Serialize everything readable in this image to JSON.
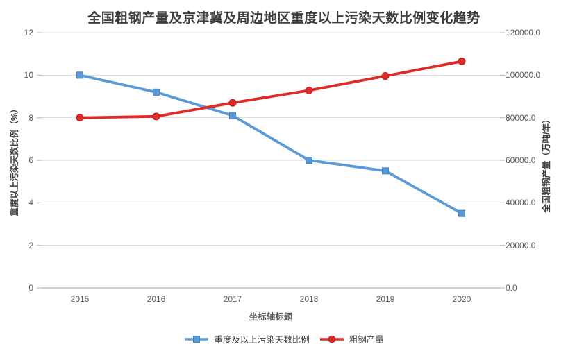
{
  "chart_data": {
    "type": "line",
    "title": "全国粗钢产量及京津冀及周边地区重度以上污染天数比例变化趋势",
    "xlabel": "坐标轴标题",
    "left_axis": {
      "label": "重度以上污染天数比例（%）",
      "min": 0,
      "max": 12,
      "step": 2,
      "ticks": [
        "0",
        "2",
        "4",
        "6",
        "8",
        "10",
        "12"
      ]
    },
    "right_axis": {
      "label": "全国粗钢产量（万吨/年）",
      "min": 0,
      "max": 120000,
      "step": 20000,
      "ticks": [
        "0.0",
        "20000.0",
        "40000.0",
        "60000.0",
        "80000.0",
        "100000.0",
        "120000.0"
      ]
    },
    "categories": [
      "2015",
      "2016",
      "2017",
      "2018",
      "2019",
      "2020"
    ],
    "series": [
      {
        "name": "重度及以上污染天数比例",
        "axis": "left",
        "marker": "square",
        "color": "#5b9bd5",
        "edge": "#4183c4",
        "values": [
          10.0,
          9.2,
          8.1,
          6.0,
          5.5,
          3.5
        ]
      },
      {
        "name": "粗钢产量",
        "axis": "right",
        "marker": "circle",
        "color": "#df2b28",
        "edge": "#b52220",
        "values": [
          80000,
          80600,
          87000,
          92800,
          99600,
          106500
        ]
      }
    ],
    "grid": true,
    "legend_position": "bottom",
    "colors": {
      "gridline": "#d9d9d9",
      "axis_line": "#b3b3b3",
      "tick_text": "#595959"
    }
  }
}
